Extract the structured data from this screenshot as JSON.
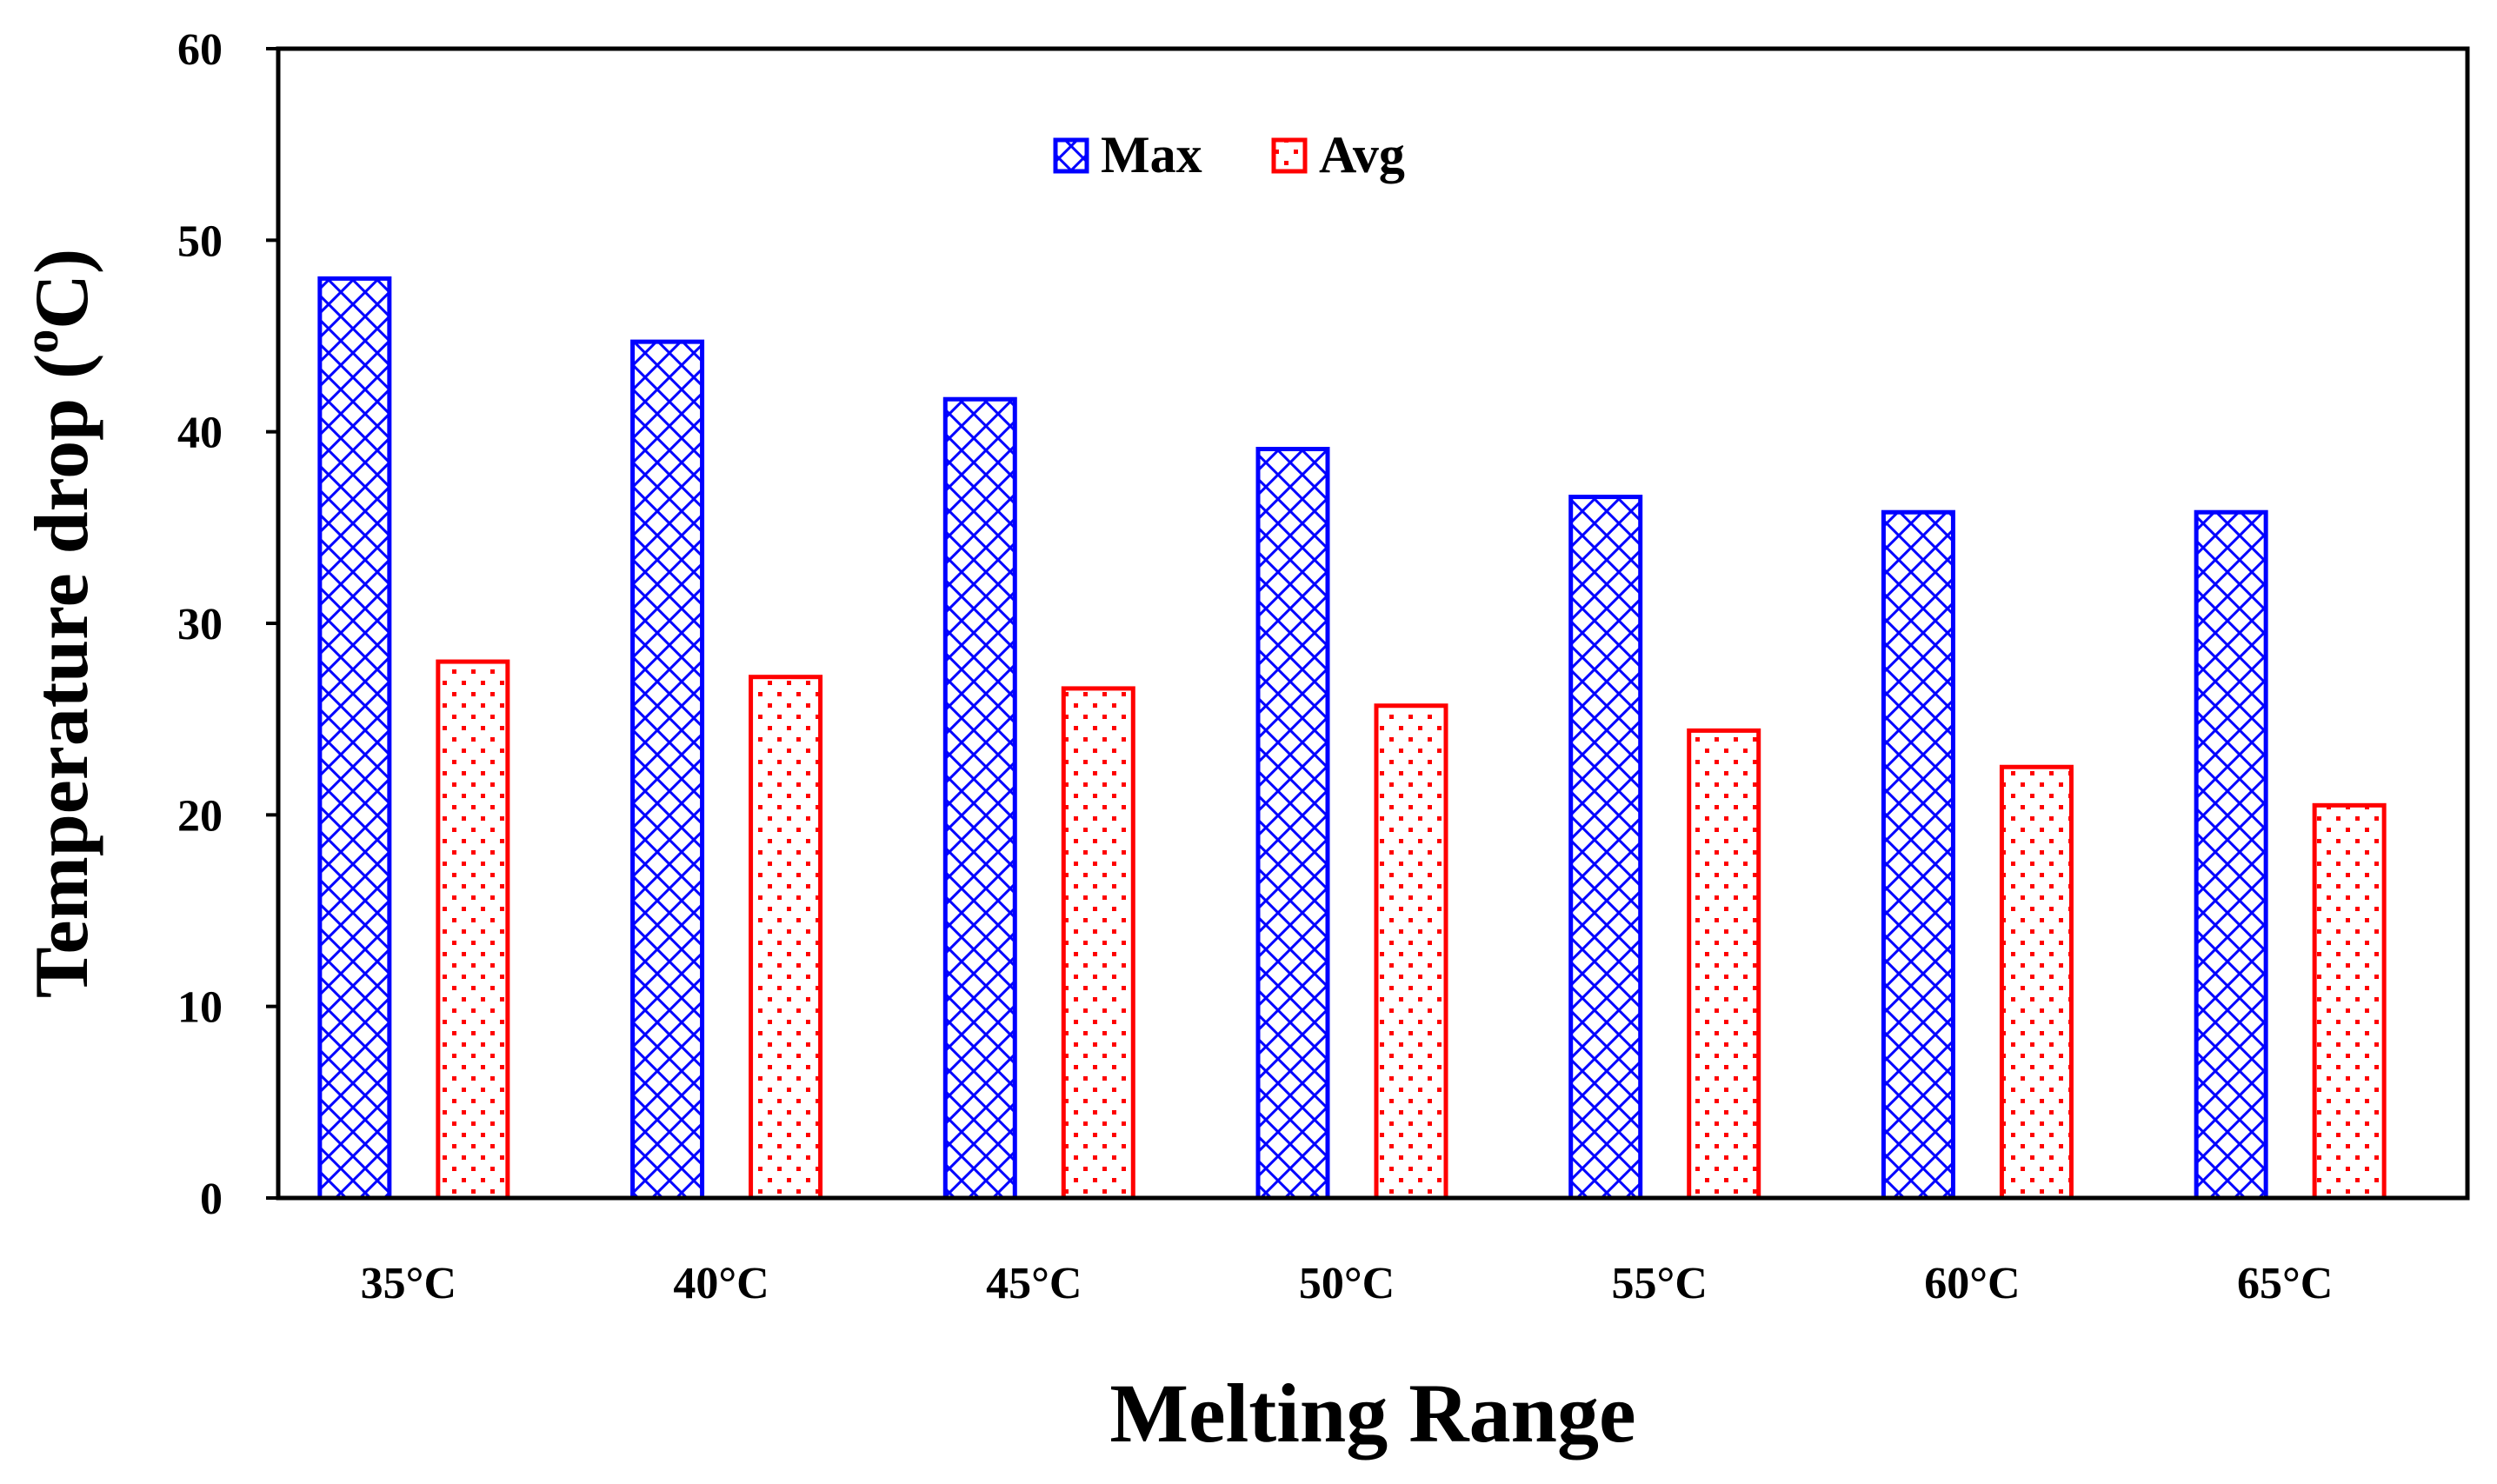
{
  "chart_data": {
    "type": "bar",
    "title": "",
    "xlabel": "Melting Range",
    "ylabel": "Temperature drop (",
    "ylabel_sup": "o",
    "ylabel_end": "C)",
    "categories": [
      "35°C",
      "40°C",
      "45°C",
      "50°C",
      "55°C",
      "60°C",
      "65°C"
    ],
    "series": [
      {
        "name": "Max",
        "color": "#0000ff",
        "pattern": "crosshatch",
        "values": [
          48,
          44.7,
          41.7,
          39.1,
          36.6,
          35.8,
          35.8
        ]
      },
      {
        "name": "Avg",
        "color": "#ff0000",
        "pattern": "dots",
        "values": [
          28,
          27.2,
          26.6,
          25.7,
          24.4,
          22.5,
          20.5
        ]
      }
    ],
    "ylim": [
      0,
      60
    ],
    "yticks": [
      0,
      10,
      20,
      30,
      40,
      50,
      60
    ],
    "grid": false,
    "legend_position": "top-center"
  }
}
